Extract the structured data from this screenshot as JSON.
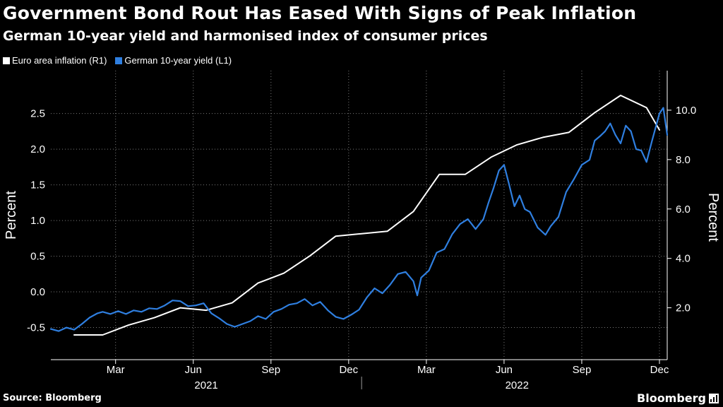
{
  "header": {
    "title": "Government Bond Rout Has Eased With Signs of Peak Inflation",
    "subtitle": "German 10-year yield and harmonised index of consumer prices"
  },
  "legend": [
    {
      "label": "Euro area inflation (R1)",
      "color": "#ffffff"
    },
    {
      "label": "German 10-year yield (L1)",
      "color": "#2f7fe0"
    }
  ],
  "footer": {
    "source": "Source: Bloomberg",
    "brand": "Bloomberg"
  },
  "chart_data": {
    "type": "line",
    "title": "Government Bond Rout Has Eased With Signs of Peak Inflation",
    "subtitle": "German 10-year yield and harmonised index of consumer prices",
    "x_range": [
      0,
      23.8
    ],
    "x_unit": "months since 2021-01-01",
    "x_ticks": [
      {
        "label": "Mar",
        "value": 2.5
      },
      {
        "label": "Jun",
        "value": 5.5
      },
      {
        "label": "Sep",
        "value": 8.5
      },
      {
        "label": "Dec",
        "value": 11.5
      },
      {
        "label": "Mar",
        "value": 14.5
      },
      {
        "label": "Jun",
        "value": 17.5
      },
      {
        "label": "Sep",
        "value": 20.5
      },
      {
        "label": "Dec",
        "value": 23.5
      }
    ],
    "year_labels": [
      {
        "label": "2021",
        "value": 6
      },
      {
        "label": "2022",
        "value": 18
      }
    ],
    "year_divider": 12,
    "left_axis": {
      "label": "Percent",
      "ylim": [
        -0.95,
        3.1
      ],
      "ticks": [
        -0.5,
        0.0,
        0.5,
        1.0,
        1.5,
        2.0,
        2.5
      ],
      "tick_labels": [
        "-0.5",
        "0.0",
        "0.5",
        "1.0",
        "1.5",
        "2.0",
        "2.5"
      ]
    },
    "right_axis": {
      "label": "Percent",
      "ylim": [
        -0.1,
        11.6
      ],
      "ticks": [
        2.0,
        4.0,
        6.0,
        8.0,
        10.0
      ],
      "tick_labels": [
        "2.0",
        "4.0",
        "6.0",
        "8.0",
        "10.0"
      ]
    },
    "series": [
      {
        "name": "Euro area inflation (R1)",
        "axis": "right",
        "color": "#ffffff",
        "x": [
          0.9,
          2.0,
          3.0,
          4.0,
          5.0,
          6.0,
          7.0,
          8.0,
          9.0,
          10.0,
          11.0,
          12.0,
          13.0,
          14.0,
          15.0,
          16.0,
          17.0,
          18.0,
          19.0,
          20.0,
          21.0,
          22.0,
          23.0,
          23.5
        ],
        "values": [
          0.9,
          0.9,
          1.3,
          1.6,
          2.0,
          1.9,
          2.2,
          3.0,
          3.4,
          4.1,
          4.9,
          5.0,
          5.1,
          5.9,
          7.4,
          7.4,
          8.1,
          8.6,
          8.9,
          9.1,
          9.9,
          10.6,
          10.1,
          9.2
        ]
      },
      {
        "name": "German 10-year yield (L1)",
        "axis": "left",
        "color": "#2f7fe0",
        "x": [
          0.0,
          0.3,
          0.6,
          0.9,
          1.2,
          1.5,
          1.8,
          2.0,
          2.3,
          2.6,
          2.9,
          3.2,
          3.5,
          3.8,
          4.1,
          4.4,
          4.7,
          5.0,
          5.3,
          5.6,
          5.9,
          6.2,
          6.5,
          6.8,
          7.1,
          7.4,
          7.7,
          8.0,
          8.3,
          8.6,
          8.9,
          9.2,
          9.5,
          9.8,
          10.1,
          10.4,
          10.7,
          11.0,
          11.3,
          11.6,
          11.9,
          12.2,
          12.5,
          12.8,
          13.1,
          13.4,
          13.7,
          14.0,
          14.15,
          14.3,
          14.6,
          14.9,
          15.2,
          15.5,
          15.8,
          16.1,
          16.4,
          16.7,
          16.9,
          17.1,
          17.3,
          17.5,
          17.7,
          17.9,
          18.1,
          18.3,
          18.5,
          18.8,
          19.1,
          19.3,
          19.6,
          19.9,
          20.2,
          20.5,
          20.8,
          21.0,
          21.2,
          21.4,
          21.6,
          21.8,
          22.0,
          22.2,
          22.4,
          22.6,
          22.8,
          23.0,
          23.2,
          23.35,
          23.5,
          23.65,
          23.8
        ],
        "values": [
          -0.52,
          -0.55,
          -0.5,
          -0.53,
          -0.45,
          -0.36,
          -0.3,
          -0.28,
          -0.31,
          -0.27,
          -0.31,
          -0.26,
          -0.28,
          -0.23,
          -0.24,
          -0.19,
          -0.12,
          -0.13,
          -0.2,
          -0.19,
          -0.16,
          -0.3,
          -0.37,
          -0.45,
          -0.49,
          -0.45,
          -0.41,
          -0.34,
          -0.38,
          -0.28,
          -0.24,
          -0.18,
          -0.16,
          -0.1,
          -0.19,
          -0.14,
          -0.26,
          -0.35,
          -0.38,
          -0.32,
          -0.25,
          -0.08,
          0.05,
          -0.02,
          0.1,
          0.25,
          0.28,
          0.15,
          -0.05,
          0.2,
          0.3,
          0.55,
          0.6,
          0.81,
          0.95,
          1.02,
          0.88,
          1.02,
          1.25,
          1.46,
          1.7,
          1.78,
          1.5,
          1.2,
          1.35,
          1.16,
          1.12,
          0.9,
          0.8,
          0.92,
          1.05,
          1.4,
          1.58,
          1.78,
          1.85,
          2.12,
          2.18,
          2.25,
          2.36,
          2.2,
          2.08,
          2.33,
          2.25,
          2.0,
          1.98,
          1.82,
          2.1,
          2.3,
          2.5,
          2.58,
          2.2
        ]
      }
    ]
  }
}
